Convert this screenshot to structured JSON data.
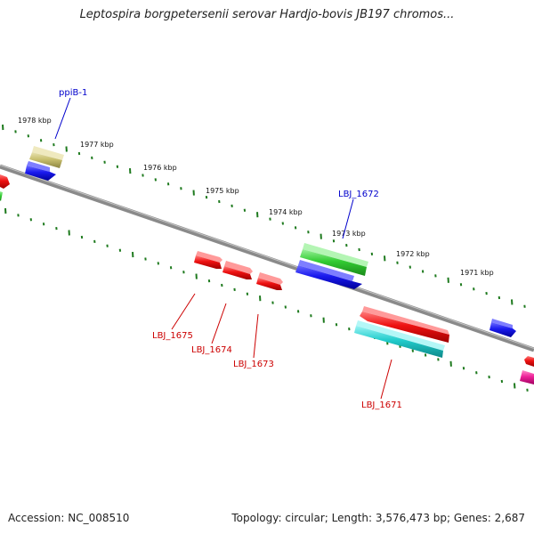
{
  "header": {
    "title": "Leptospira borgpetersenii serovar Hardjo-bovis JB197 chromos..."
  },
  "footer": {
    "accession": "Accession: NC_008510",
    "topology": "Topology: circular; Length: 3,576,473 bp; Genes: 2,687"
  },
  "colors": {
    "backbone": "#8a8a8a",
    "tick": "#1e7a1e",
    "label_forward": "#0000cc",
    "label_reverse": "#cc0000",
    "gene_blue": "#1a1aee",
    "gene_red": "#ee1111",
    "gene_green": "#33cc33",
    "gene_olive": "#c8bf6e",
    "gene_cyan": "#22cccc",
    "gene_magenta": "#ee2299"
  },
  "scale_labels": [
    "1978 kbp",
    "1977 kbp",
    "1976 kbp",
    "1975 kbp",
    "1974 kbp",
    "1973 kbp",
    "1972 kbp",
    "1971 kbp"
  ],
  "gene_labels": {
    "ppiB_1": "ppiB-1",
    "LBJ_1672": "LBJ_1672",
    "LBJ_1675": "LBJ_1675",
    "LBJ_1674": "LBJ_1674",
    "LBJ_1673": "LBJ_1673",
    "LBJ_1671": "LBJ_1671"
  }
}
